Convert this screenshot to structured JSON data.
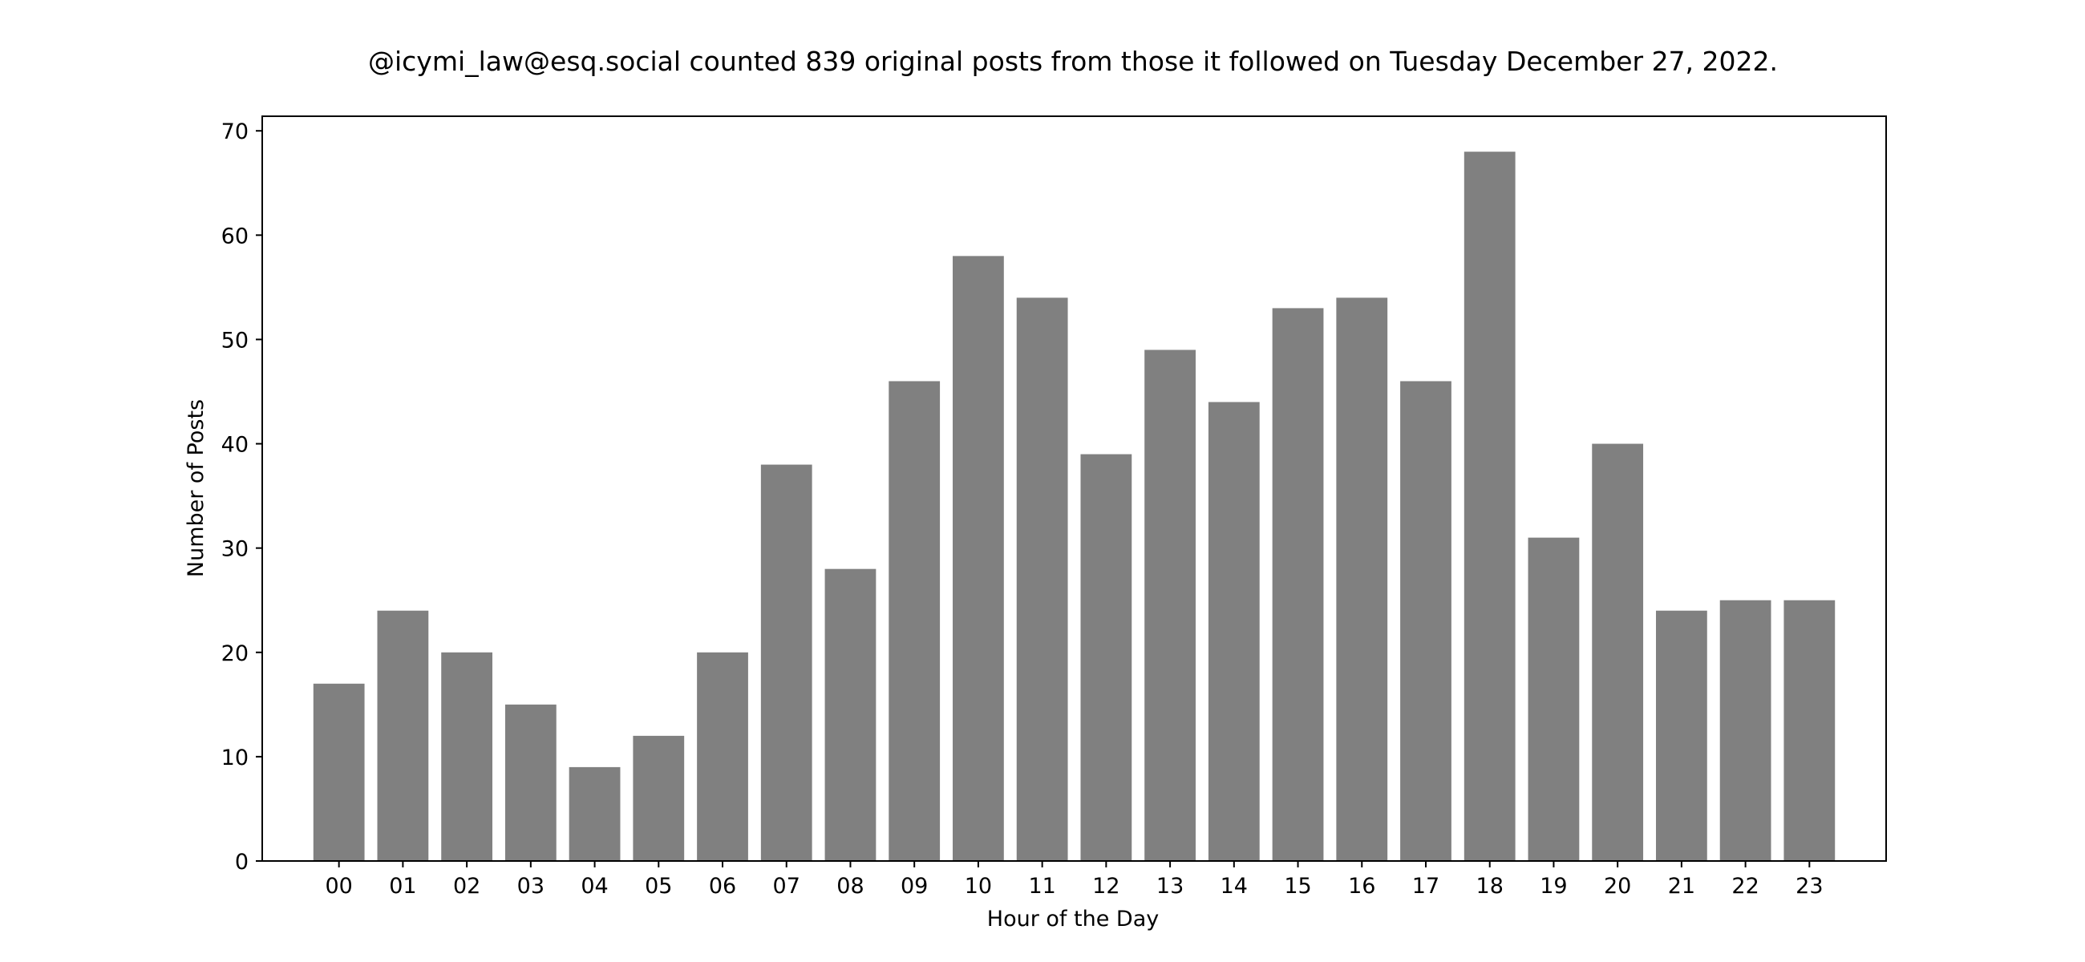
{
  "chart_data": {
    "type": "bar",
    "title": "@icymi_law@esq.social counted 839 original posts from those it followed on Tuesday December 27, 2022.",
    "xlabel": "Hour of the Day",
    "ylabel": "Number of Posts",
    "categories": [
      "00",
      "01",
      "02",
      "03",
      "04",
      "05",
      "06",
      "07",
      "08",
      "09",
      "10",
      "11",
      "12",
      "13",
      "14",
      "15",
      "16",
      "17",
      "18",
      "19",
      "20",
      "21",
      "22",
      "23"
    ],
    "values": [
      17,
      24,
      20,
      15,
      9,
      12,
      20,
      38,
      28,
      46,
      58,
      54,
      39,
      49,
      44,
      53,
      54,
      46,
      68,
      31,
      40,
      24,
      25,
      25
    ],
    "ylim": [
      0,
      71.4
    ],
    "yticks": [
      0,
      10,
      20,
      30,
      40,
      50,
      60,
      70
    ],
    "grid": false,
    "legend": "none",
    "bar_color": "#808080"
  }
}
